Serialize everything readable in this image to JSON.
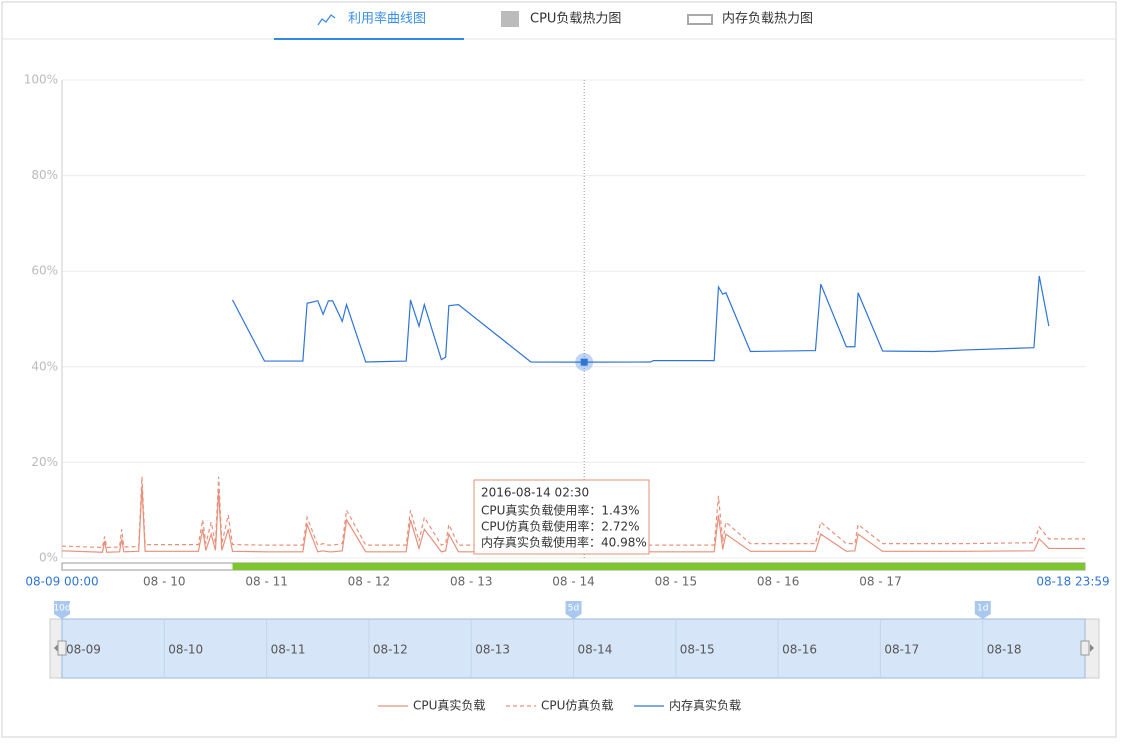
{
  "tabs": {
    "items": [
      "利用率曲线图",
      "CPU负载热力图",
      "内存负载热力图"
    ],
    "active": 0
  },
  "chart_data": {
    "type": "line",
    "x": [
      "2016-08-09 00:00",
      "2016-08-09 09:30",
      "2016-08-09 10:00",
      "2016-08-09 10:30",
      "2016-08-09 13:30",
      "2016-08-09 14:00",
      "2016-08-09 14:30",
      "2016-08-09 18:00",
      "2016-08-09 18:45",
      "2016-08-09 19:30",
      "2016-08-10 08:00",
      "2016-08-10 09:00",
      "2016-08-10 09:45",
      "2016-08-10 11:00",
      "2016-08-10 12:00",
      "2016-08-10 12:45",
      "2016-08-10 13:30",
      "2016-08-10 15:00",
      "2016-08-10 16:00",
      "2016-08-10 23:30",
      "2016-08-11 08:30",
      "2016-08-11 09:30",
      "2016-08-11 12:00",
      "2016-08-11 13:15",
      "2016-08-11 14:30",
      "2016-08-11 15:30",
      "2016-08-11 17:45",
      "2016-08-11 18:45",
      "2016-08-11 23:15",
      "2016-08-12 08:45",
      "2016-08-12 09:45",
      "2016-08-12 11:45",
      "2016-08-12 13:00",
      "2016-08-12 17:00",
      "2016-08-12 18:00",
      "2016-08-12 18:45",
      "2016-08-12 21:00",
      "2016-08-13 14:00",
      "2016-08-14 02:30",
      "2016-08-14 18:00",
      "2016-08-14 18:45",
      "2016-08-15 09:00",
      "2016-08-15 10:00",
      "2016-08-15 11:00",
      "2016-08-15 11:45",
      "2016-08-15 17:30",
      "2016-08-16 08:45",
      "2016-08-16 10:00",
      "2016-08-16 16:00",
      "2016-08-16 18:00",
      "2016-08-16 18:45",
      "2016-08-17 00:30",
      "2016-08-17 12:30",
      "2016-08-17 19:00",
      "2016-08-18 12:00",
      "2016-08-18 13:15",
      "2016-08-18 15:30",
      "2016-08-18 23:59"
    ],
    "series": [
      {
        "name": "CPU真实负载",
        "color": "#e8907a",
        "dashed": false,
        "values": [
          1.5,
          1.2,
          3.5,
          1.2,
          1.3,
          4,
          1.3,
          1.4,
          15,
          1.4,
          1.4,
          6,
          1.6,
          5,
          1.6,
          14,
          1.6,
          6,
          1.4,
          1.3,
          1.3,
          7,
          1.3,
          1.5,
          1.3,
          1.3,
          1.5,
          8,
          1.3,
          1.3,
          8,
          2,
          6,
          1.3,
          1.5,
          5,
          1.3,
          1.3,
          1.43,
          1.3,
          1.3,
          1.3,
          9,
          1.8,
          5,
          1.4,
          1.4,
          5,
          1.4,
          1.5,
          5,
          1.4,
          1.4,
          1.4,
          1.5,
          4,
          2,
          2
        ]
      },
      {
        "name": "CPU仿真负载",
        "color": "#e8907a",
        "dashed": true,
        "values": [
          2.5,
          2.2,
          4.5,
          2.2,
          2.3,
          6,
          2.3,
          2.4,
          17,
          2.8,
          2.8,
          8,
          3,
          7.5,
          3,
          17,
          3,
          9,
          2.8,
          2.7,
          2.7,
          8.5,
          2.7,
          3,
          2.7,
          2.7,
          3,
          10,
          2.7,
          2.7,
          10,
          3.5,
          8.5,
          2.7,
          3,
          7,
          2.7,
          2.7,
          2.72,
          2.7,
          2.7,
          2.7,
          13,
          3.5,
          7.5,
          3,
          3,
          7.5,
          3,
          3,
          7,
          3,
          3,
          3,
          3.2,
          6.5,
          4,
          4
        ]
      },
      {
        "name": "内存真实负载",
        "color": "#2f75d6",
        "dashed": false,
        "values": [
          null,
          null,
          null,
          null,
          null,
          null,
          null,
          null,
          null,
          null,
          null,
          null,
          null,
          null,
          null,
          null,
          null,
          null,
          54,
          41.2,
          41.2,
          53.3,
          53.8,
          51,
          53.8,
          53.8,
          49.5,
          53,
          41,
          41.2,
          54,
          48.5,
          53,
          41.5,
          42,
          52.8,
          53,
          41,
          40.98,
          41,
          41.3,
          41.3,
          56.7,
          55.2,
          55.5,
          43.2,
          43.4,
          57.3,
          44.2,
          44.2,
          55.5,
          43.3,
          43.2,
          43.5,
          44,
          59,
          48.5,
          null
        ]
      }
    ],
    "xlim": [
      "2016-08-09 00:00",
      "2016-08-18 23:59"
    ],
    "range_labels": [
      "08-09 00:00",
      "08-18 23:59"
    ],
    "xticks": [
      {
        "value": "2016-08-10 00:00",
        "label": "08 - 10"
      },
      {
        "value": "2016-08-11 00:00",
        "label": "08 - 11"
      },
      {
        "value": "2016-08-12 00:00",
        "label": "08 - 12"
      },
      {
        "value": "2016-08-13 00:00",
        "label": "08 - 13"
      },
      {
        "value": "2016-08-14 00:00",
        "label": "08 - 14"
      },
      {
        "value": "2016-08-15 00:00",
        "label": "08 - 15"
      },
      {
        "value": "2016-08-16 00:00",
        "label": "08 - 16"
      },
      {
        "value": "2016-08-17 00:00",
        "label": "08 - 17"
      }
    ],
    "ylim": [
      0,
      100
    ],
    "yticks": [
      {
        "value": 0,
        "label": "0%"
      },
      {
        "value": 20,
        "label": "20%"
      },
      {
        "value": 40,
        "label": "40%"
      },
      {
        "value": 60,
        "label": "60%"
      },
      {
        "value": 80,
        "label": "80%"
      },
      {
        "value": 100,
        "label": "100%"
      }
    ],
    "grid": true,
    "selection_start": "2016-08-10 16:00",
    "highlight_index": 38,
    "tooltip": {
      "title": "2016-08-14 02:30",
      "lines": [
        "CPU真实负载使用率：1.43%",
        "CPU仿真负载使用率：2.72%",
        "内存真实负载使用率：40.98%"
      ]
    },
    "navigator": {
      "labels": [
        "08-09",
        "08-10",
        "08-11",
        "08-12",
        "08-13",
        "08-14",
        "08-15",
        "08-16",
        "08-17",
        "08-18"
      ],
      "markers": [
        {
          "value": "2016-08-09 00:00",
          "label": "10d"
        },
        {
          "value": "2016-08-14 00:00",
          "label": "5d"
        },
        {
          "value": "2016-08-18 00:00",
          "label": "1d"
        }
      ]
    }
  }
}
